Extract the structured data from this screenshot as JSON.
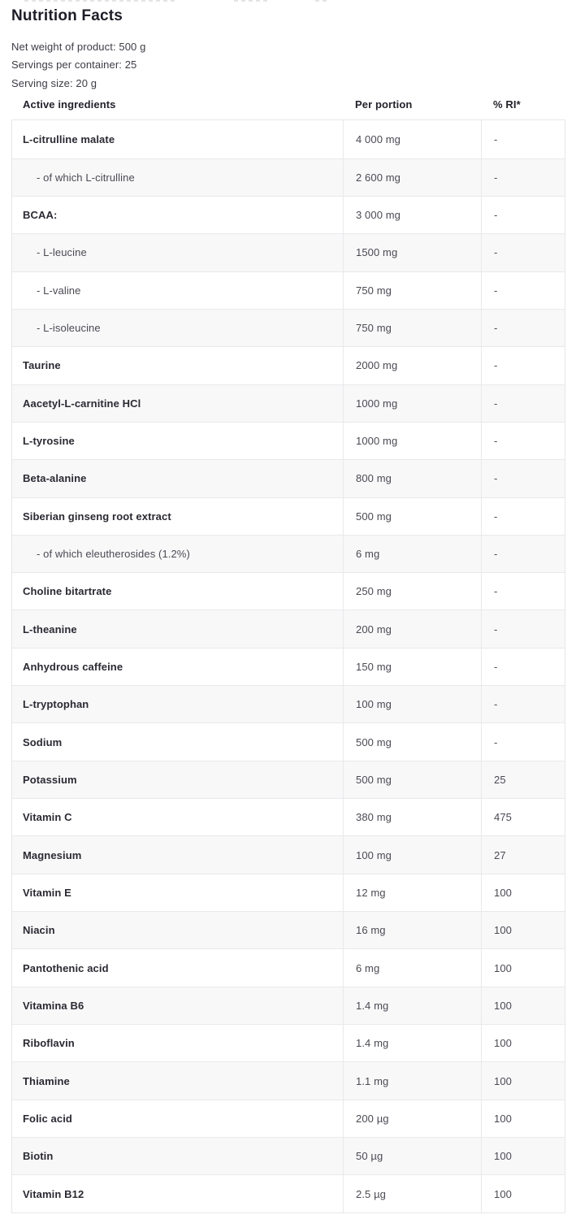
{
  "page": {
    "title": "Nutrition Facts",
    "meta": [
      "Net weight of product: 500 g",
      "Servings per container: 25",
      "Serving size: 20 g"
    ]
  },
  "table": {
    "headers": [
      "Active ingredients",
      "Per portion",
      "% RI*"
    ],
    "rows": [
      {
        "name": "L-citrulline malate",
        "portion": "4 000 mg",
        "ri": "-",
        "sub": false
      },
      {
        "name": "- of which L-citrulline",
        "portion": "2 600 mg",
        "ri": "-",
        "sub": true
      },
      {
        "name": "BCAA:",
        "portion": "3 000 mg",
        "ri": "-",
        "sub": false
      },
      {
        "name": "- L-leucine",
        "portion": "1500 mg",
        "ri": "-",
        "sub": true
      },
      {
        "name": "- L-valine",
        "portion": "750 mg",
        "ri": "-",
        "sub": true
      },
      {
        "name": "- L-isoleucine",
        "portion": "750 mg",
        "ri": "-",
        "sub": true
      },
      {
        "name": "Taurine",
        "portion": "2000 mg",
        "ri": "-",
        "sub": false
      },
      {
        "name": "Aacetyl-L-carnitine HCl",
        "portion": "1000 mg",
        "ri": "-",
        "sub": false
      },
      {
        "name": "L-tyrosine",
        "portion": "1000 mg",
        "ri": "-",
        "sub": false
      },
      {
        "name": "Beta-alanine",
        "portion": "800 mg",
        "ri": "-",
        "sub": false
      },
      {
        "name": "Siberian ginseng root extract",
        "portion": "500 mg",
        "ri": "-",
        "sub": false
      },
      {
        "name": "- of which eleutherosides (1.2%)",
        "portion": "6 mg",
        "ri": "-",
        "sub": true
      },
      {
        "name": "Choline bitartrate",
        "portion": "250 mg",
        "ri": "-",
        "sub": false
      },
      {
        "name": "L-theanine",
        "portion": "200 mg",
        "ri": "-",
        "sub": false
      },
      {
        "name": "Anhydrous caffeine",
        "portion": "150 mg",
        "ri": "-",
        "sub": false
      },
      {
        "name": "L-tryptophan",
        "portion": "100 mg",
        "ri": "-",
        "sub": false
      },
      {
        "name": "Sodium",
        "portion": "500 mg",
        "ri": "-",
        "sub": false
      },
      {
        "name": "Potassium",
        "portion": "500 mg",
        "ri": "25",
        "sub": false
      },
      {
        "name": "Vitamin C",
        "portion": "380 mg",
        "ri": "475",
        "sub": false
      },
      {
        "name": "Magnesium",
        "portion": "100 mg",
        "ri": "27",
        "sub": false
      },
      {
        "name": "Vitamin E",
        "portion": "12 mg",
        "ri": "100",
        "sub": false
      },
      {
        "name": "Niacin",
        "portion": "16 mg",
        "ri": "100",
        "sub": false
      },
      {
        "name": "Pantothenic acid",
        "portion": "6 mg",
        "ri": "100",
        "sub": false
      },
      {
        "name": "Vitamina B6",
        "portion": "1.4 mg",
        "ri": "100",
        "sub": false
      },
      {
        "name": "Riboflavin",
        "portion": "1.4 mg",
        "ri": "100",
        "sub": false
      },
      {
        "name": "Thiamine",
        "portion": "1.1 mg",
        "ri": "100",
        "sub": false
      },
      {
        "name": "Folic acid",
        "portion": "200 µg",
        "ri": "100",
        "sub": false
      },
      {
        "name": "Biotin",
        "portion": "50 µg",
        "ri": "100",
        "sub": false
      },
      {
        "name": "Vitamin B12",
        "portion": "2.5 µg",
        "ri": "100",
        "sub": false
      }
    ]
  },
  "colors": {
    "title_text": "#1d1d27",
    "bold_text": "#2a2a33",
    "body_text": "#4a4a53",
    "row_alt_bg": "#f8f8f9",
    "border": "#e9e9ec"
  }
}
